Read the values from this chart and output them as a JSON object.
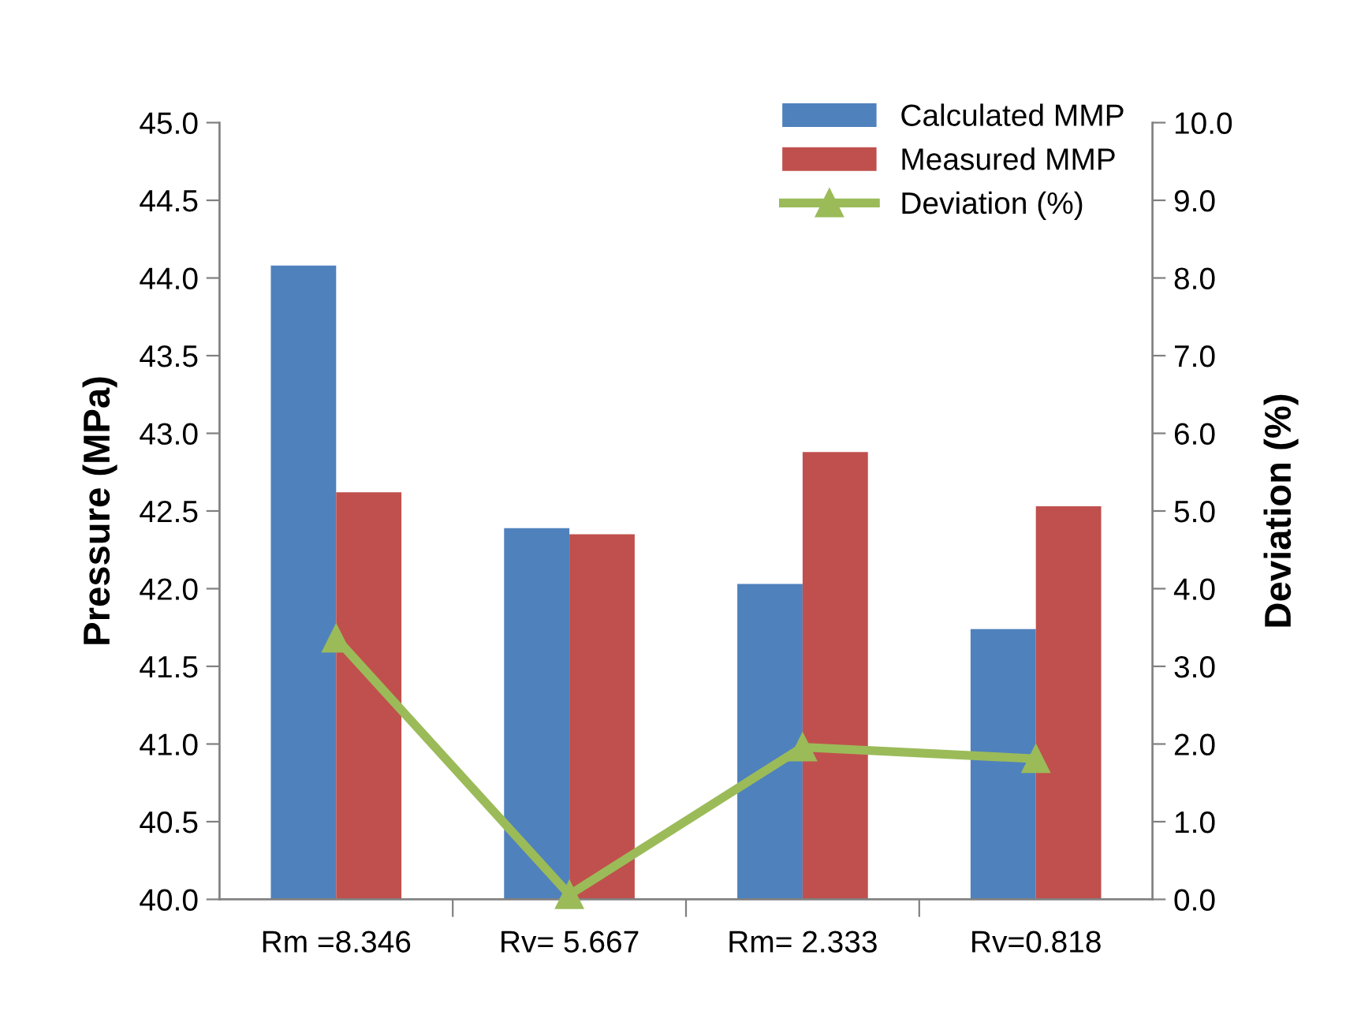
{
  "chart_data": {
    "type": "bar",
    "ylabel": "Pressure (MPa)",
    "y2label": "Deviation (%)",
    "categories": [
      "Rm =8.346",
      "Rv= 5.667",
      "Rm= 2.333",
      "Rv=0.818"
    ],
    "series": [
      {
        "name": "Calculated MMP",
        "color": "#4f81bd",
        "values": [
          44.08,
          42.39,
          42.03,
          41.74
        ]
      },
      {
        "name": "Measured MMP",
        "color": "#c0504d",
        "values": [
          42.62,
          42.35,
          42.88,
          42.53
        ]
      },
      {
        "name": "Deviation (%)",
        "type": "line",
        "axis": "y2",
        "color": "#9bbb59",
        "marker": "triangle",
        "values": [
          3.36,
          0.06,
          1.96,
          1.81
        ]
      }
    ],
    "ylim": [
      40.0,
      45.0
    ],
    "yticks": [
      {
        "value": 40,
        "label": "40.0"
      },
      {
        "value": 40.5,
        "label": "40.5"
      },
      {
        "value": 41,
        "label": "41.0"
      },
      {
        "value": 41.5,
        "label": "41.5"
      },
      {
        "value": 42,
        "label": "42.0"
      },
      {
        "value": 42.5,
        "label": "42.5"
      },
      {
        "value": 43,
        "label": "43.0"
      },
      {
        "value": 43.5,
        "label": "43.5"
      },
      {
        "value": 44,
        "label": "44.0"
      },
      {
        "value": 44.5,
        "label": "44.5"
      },
      {
        "value": 45,
        "label": "45.0"
      }
    ],
    "y2lim": [
      0.0,
      10.0
    ],
    "y2ticks": [
      {
        "value": 0,
        "label": "0.0"
      },
      {
        "value": 1,
        "label": "1.0"
      },
      {
        "value": 2,
        "label": "2.0"
      },
      {
        "value": 3,
        "label": "3.0"
      },
      {
        "value": 4,
        "label": "4.0"
      },
      {
        "value": 5,
        "label": "5.0"
      },
      {
        "value": 6,
        "label": "6.0"
      },
      {
        "value": 7,
        "label": "7.0"
      },
      {
        "value": 8,
        "label": "8.0"
      },
      {
        "value": 9,
        "label": "9.0"
      },
      {
        "value": 10,
        "label": "10.0"
      }
    ],
    "grid": false,
    "legend": "top right"
  }
}
